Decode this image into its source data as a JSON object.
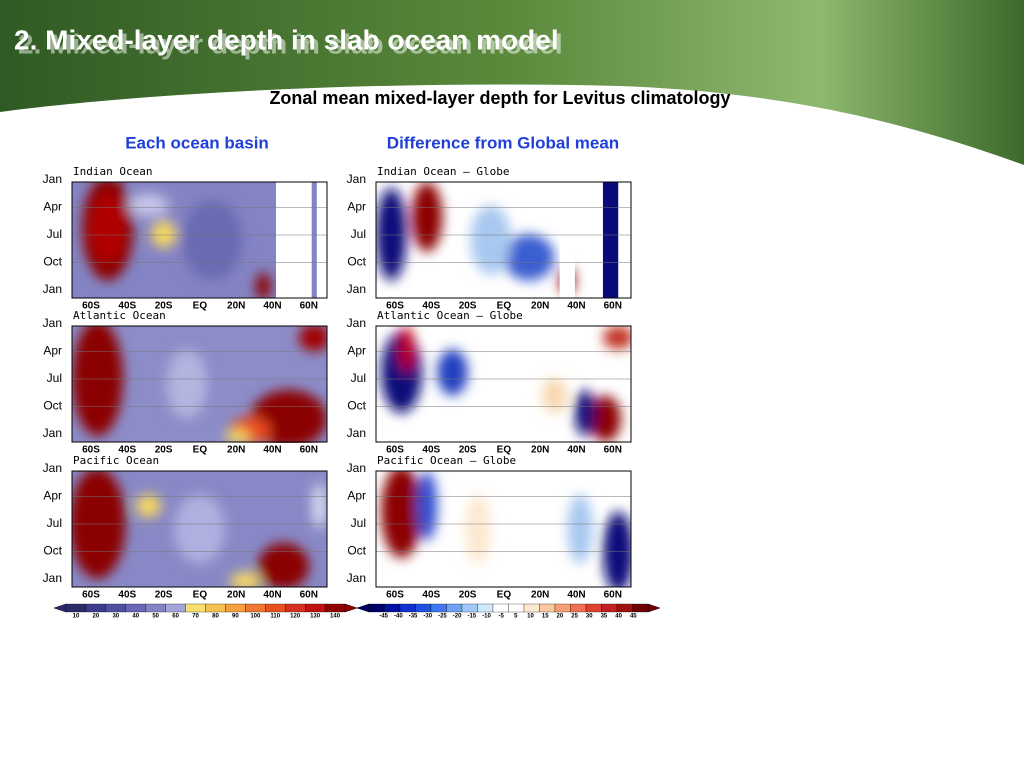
{
  "header": {
    "title": "2. Mixed-layer depth in slab ocean model",
    "subtitle": "Zonal mean mixed-layer depth for Levitus climatology"
  },
  "columns": [
    "Each ocean basin",
    "Difference from Global mean"
  ],
  "panels": [
    {
      "title": "Indian  Ocean",
      "months": [
        "Jan",
        "Apr",
        "Jul",
        "Oct",
        "Jan"
      ],
      "lats": [
        "60S",
        "40S",
        "20S",
        "EQ",
        "20N",
        "40N",
        "60N"
      ]
    },
    {
      "title": "Indian  Ocean  —  Globe",
      "months": [
        "Jan",
        "Apr",
        "Jul",
        "Oct",
        "Jan"
      ],
      "lats": [
        "60S",
        "40S",
        "20S",
        "EQ",
        "20N",
        "40N",
        "60N"
      ]
    },
    {
      "title": "Atlantic  Ocean",
      "months": [
        "Jan",
        "Apr",
        "Jul",
        "Oct",
        "Jan"
      ],
      "lats": [
        "60S",
        "40S",
        "20S",
        "EQ",
        "20N",
        "40N",
        "60N"
      ]
    },
    {
      "title": "Atlantic  Ocean  —  Globe",
      "months": [
        "Jan",
        "Apr",
        "Jul",
        "Oct",
        "Jan"
      ],
      "lats": [
        "60S",
        "40S",
        "20S",
        "EQ",
        "20N",
        "40N",
        "60N"
      ]
    },
    {
      "title": "Pacific  Ocean",
      "months": [
        "Jan",
        "Apr",
        "Jul",
        "Oct",
        "Jan"
      ],
      "lats": [
        "60S",
        "40S",
        "20S",
        "EQ",
        "20N",
        "40N",
        "60N"
      ]
    },
    {
      "title": "Pacific  Ocean  —  Globe",
      "months": [
        "Jan",
        "Apr",
        "Jul",
        "Oct",
        "Jan"
      ],
      "lats": [
        "60S",
        "40S",
        "20S",
        "EQ",
        "20N",
        "40N",
        "60N"
      ]
    }
  ],
  "colorbars": [
    {
      "labels": [
        "10",
        "20",
        "30",
        "40",
        "50",
        "60",
        "70",
        "80",
        "90",
        "100",
        "110",
        "120",
        "130",
        "140"
      ]
    },
    {
      "labels": [
        "-45",
        "-40",
        "-35",
        "-30",
        "-25",
        "-20",
        "-15",
        "-10",
        "-5",
        "5",
        "10",
        "15",
        "20",
        "25",
        "30",
        "35",
        "40",
        "45"
      ]
    }
  ]
}
